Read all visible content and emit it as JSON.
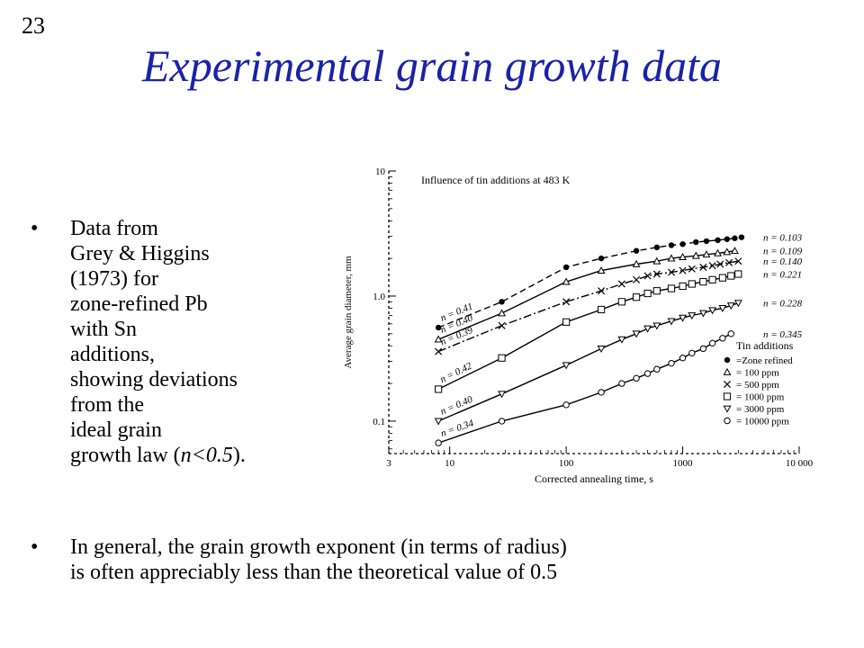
{
  "slide": {
    "number": "23",
    "title": "Experimental grain growth data",
    "bullets": [
      {
        "text_lines": [
          "Data from",
          "Grey & Higgins",
          "(1973) for",
          "zone-refined Pb",
          "with Sn",
          "additions,",
          "showing deviations",
          "from the",
          "ideal grain"
        ],
        "last_line_prefix": "growth law (",
        "last_line_math": "n<0.5",
        "last_line_suffix": ")."
      },
      {
        "text_lines": [
          "In general, the grain growth exponent (in terms of radius)",
          "is often appreciably less than the theoretical value of 0.5"
        ]
      }
    ]
  },
  "chart_data": {
    "type": "scatter",
    "title": "Influence of tin additions at 483 K",
    "xlabel": "Corrected annealing time, s",
    "ylabel": "Average grain diameter, mm",
    "x_scale": "log",
    "y_scale": "log",
    "xlim": [
      3,
      10000
    ],
    "ylim": [
      0.055,
      10
    ],
    "x_ticks": [
      3,
      10,
      100,
      1000,
      10000
    ],
    "x_tick_labels": [
      "3",
      "10",
      "100",
      "1000",
      "10 000"
    ],
    "y_ticks": [
      0.1,
      1,
      10
    ],
    "y_tick_labels": [
      "0.1",
      "1.0",
      "10"
    ],
    "legend_title": "Tin additions",
    "legend_position": "lower-right",
    "series": [
      {
        "name": "Zone refined",
        "marker": "filled-circle",
        "n_left": "n = 0.41",
        "n_right": "n = 0.103",
        "x": [
          8,
          28,
          100,
          200,
          400,
          600,
          800,
          1000,
          1300,
          1600,
          2000,
          2400,
          2800,
          3200
        ],
        "y": [
          0.56,
          0.9,
          1.7,
          2.0,
          2.3,
          2.45,
          2.55,
          2.6,
          2.7,
          2.75,
          2.8,
          2.85,
          2.9,
          2.95
        ]
      },
      {
        "name": "100 ppm",
        "marker": "triangle",
        "n_left": "n = 0.40",
        "n_right": "n = 0.109",
        "x": [
          8,
          28,
          100,
          200,
          400,
          600,
          800,
          1000,
          1300,
          1600,
          2000,
          2400,
          2800
        ],
        "y": [
          0.45,
          0.73,
          1.3,
          1.6,
          1.8,
          1.9,
          2.0,
          2.05,
          2.1,
          2.15,
          2.2,
          2.25,
          2.3
        ]
      },
      {
        "name": "500 ppm",
        "marker": "cross",
        "n_left": "n = 0.39",
        "n_right": "n = 0.140",
        "x": [
          8,
          28,
          100,
          200,
          300,
          400,
          500,
          600,
          800,
          1000,
          1200,
          1500,
          1800,
          2100,
          2500,
          3000
        ],
        "y": [
          0.36,
          0.58,
          0.9,
          1.1,
          1.25,
          1.35,
          1.45,
          1.5,
          1.55,
          1.6,
          1.65,
          1.7,
          1.75,
          1.8,
          1.85,
          1.9
        ]
      },
      {
        "name": "1000 ppm",
        "marker": "square",
        "n_left": "n = 0.42",
        "n_right": "n = 0.221",
        "x": [
          8,
          28,
          100,
          200,
          300,
          400,
          500,
          600,
          800,
          1000,
          1200,
          1500,
          1800,
          2200,
          2600,
          3000
        ],
        "y": [
          0.18,
          0.32,
          0.62,
          0.78,
          0.9,
          0.98,
          1.05,
          1.1,
          1.15,
          1.2,
          1.25,
          1.3,
          1.35,
          1.4,
          1.45,
          1.5
        ]
      },
      {
        "name": "3000 ppm",
        "marker": "inv-triangle",
        "n_left": "n = 0.40",
        "n_right": "n = 0.228",
        "x": [
          8,
          28,
          100,
          200,
          300,
          400,
          500,
          600,
          800,
          1000,
          1200,
          1500,
          1800,
          2200,
          2600,
          3000
        ],
        "y": [
          0.1,
          0.165,
          0.28,
          0.38,
          0.45,
          0.5,
          0.55,
          0.58,
          0.63,
          0.67,
          0.7,
          0.73,
          0.77,
          0.8,
          0.84,
          0.88
        ]
      },
      {
        "name": "10000 ppm",
        "marker": "open-circle",
        "n_left": "n = 0.34",
        "n_right": "n = 0.345",
        "x": [
          8,
          28,
          100,
          200,
          300,
          400,
          500,
          600,
          800,
          1000,
          1200,
          1500,
          1800,
          2200,
          2600
        ],
        "y": [
          0.067,
          0.1,
          0.135,
          0.17,
          0.2,
          0.22,
          0.24,
          0.26,
          0.29,
          0.32,
          0.35,
          0.38,
          0.42,
          0.46,
          0.5
        ]
      }
    ]
  }
}
